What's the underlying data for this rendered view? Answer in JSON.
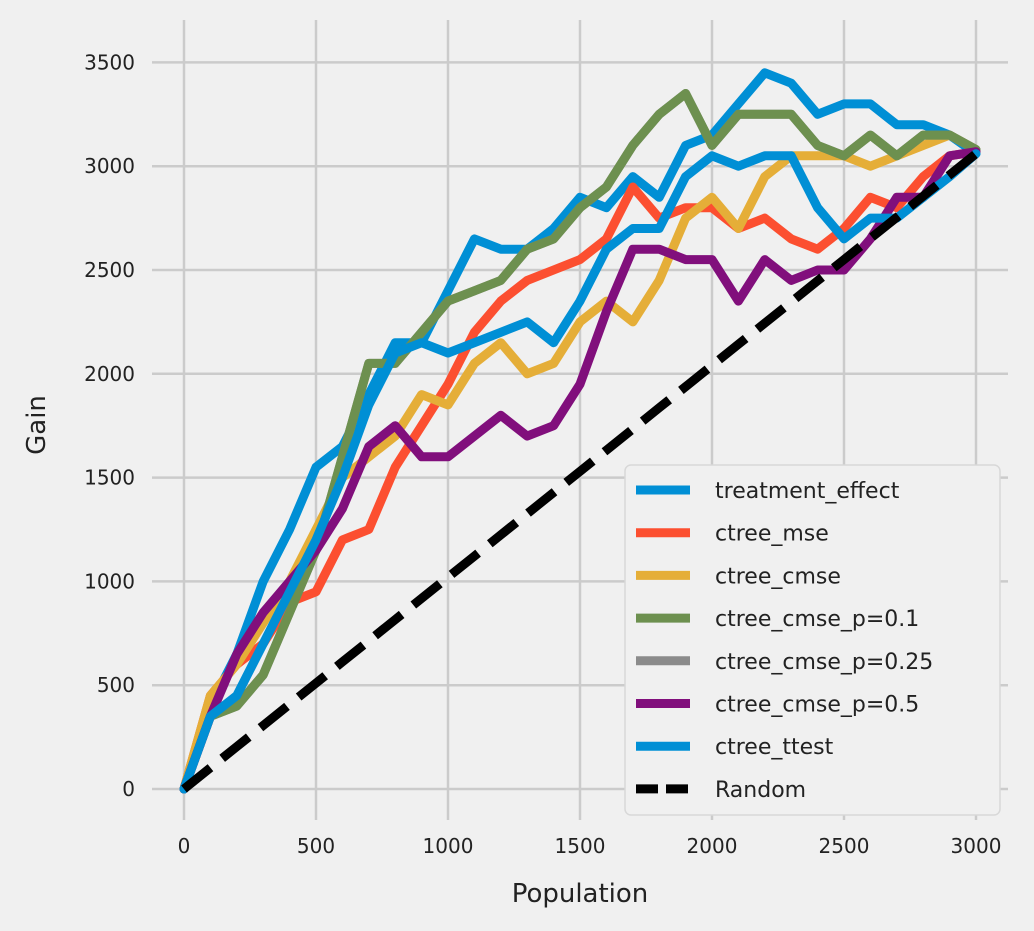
{
  "chart_data": {
    "type": "line",
    "xlabel": "Population",
    "ylabel": "Gain",
    "xlim": [
      -120,
      3120
    ],
    "ylim": [
      -150,
      3700
    ],
    "xticks": [
      0,
      500,
      1000,
      1500,
      2000,
      2500,
      3000
    ],
    "yticks": [
      0,
      500,
      1000,
      1500,
      2000,
      2500,
      3000,
      3500
    ],
    "grid": true,
    "legend_position": "lower-right",
    "x": [
      0,
      100,
      200,
      300,
      400,
      500,
      600,
      700,
      800,
      900,
      1000,
      1100,
      1200,
      1300,
      1400,
      1500,
      1600,
      1700,
      1800,
      1900,
      2000,
      2100,
      2200,
      2300,
      2400,
      2500,
      2600,
      2700,
      2800,
      2900,
      3000
    ],
    "series": [
      {
        "name": "treatment_effect",
        "color": "#008fd5",
        "values": [
          0,
          400,
          650,
          1000,
          1250,
          1550,
          1650,
          1900,
          2150,
          2150,
          2400,
          2650,
          2600,
          2600,
          2700,
          2850,
          2800,
          2950,
          2850,
          3100,
          3150,
          3300,
          3450,
          3400,
          3250,
          3300,
          3300,
          3200,
          3200,
          3150,
          3060
        ]
      },
      {
        "name": "ctree_mse",
        "color": "#fc4f30",
        "values": [
          0,
          450,
          600,
          700,
          900,
          950,
          1200,
          1250,
          1550,
          1750,
          1950,
          2200,
          2350,
          2450,
          2500,
          2550,
          2650,
          2900,
          2750,
          2800,
          2800,
          2700,
          2750,
          2650,
          2600,
          2700,
          2850,
          2800,
          2950,
          3050,
          3070
        ]
      },
      {
        "name": "ctree_cmse",
        "color": "#e5ae38",
        "values": [
          0,
          450,
          600,
          800,
          1000,
          1250,
          1500,
          1600,
          1700,
          1900,
          1850,
          2050,
          2150,
          2000,
          2050,
          2250,
          2350,
          2250,
          2450,
          2750,
          2850,
          2700,
          2950,
          3050,
          3050,
          3050,
          3000,
          3050,
          3100,
          3150,
          3080
        ]
      },
      {
        "name": "ctree_cmse_p=0.25",
        "color": "#8b8b8b",
        "values": [
          0,
          350,
          400,
          550,
          850,
          1150,
          1600,
          2050,
          2050,
          2200,
          2350,
          2400,
          2450,
          2600,
          2650,
          2800,
          2900,
          3100,
          3250,
          3350,
          3100,
          3250,
          3250,
          3250,
          3100,
          3050,
          3150,
          3050,
          3150,
          3150,
          3080
        ]
      },
      {
        "name": "ctree_cmse_p=0.1",
        "color": "#6d904f",
        "values": [
          0,
          350,
          400,
          550,
          850,
          1150,
          1600,
          2050,
          2050,
          2200,
          2350,
          2400,
          2450,
          2600,
          2650,
          2800,
          2900,
          3100,
          3250,
          3350,
          3100,
          3250,
          3250,
          3250,
          3100,
          3050,
          3150,
          3050,
          3150,
          3150,
          3080
        ]
      },
      {
        "name": "ctree_cmse_p=0.5",
        "color": "#810f7c",
        "values": [
          0,
          350,
          650,
          850,
          1000,
          1150,
          1350,
          1650,
          1750,
          1600,
          1600,
          1700,
          1800,
          1700,
          1750,
          1950,
          2300,
          2600,
          2600,
          2550,
          2550,
          2350,
          2550,
          2450,
          2500,
          2500,
          2650,
          2850,
          2850,
          3050,
          3070
        ]
      },
      {
        "name": "ctree_ttest",
        "color": "#008fd5",
        "values": [
          0,
          350,
          450,
          700,
          950,
          1200,
          1500,
          1850,
          2100,
          2150,
          2100,
          2150,
          2200,
          2250,
          2150,
          2350,
          2600,
          2700,
          2700,
          2950,
          3050,
          3000,
          3050,
          3050,
          2800,
          2650,
          2750,
          2750,
          2850,
          2950,
          3060
        ]
      },
      {
        "name": "Random",
        "color": "#000000",
        "dashed": true,
        "values": [
          0,
          102,
          204,
          306,
          408,
          510,
          612,
          714,
          816,
          918,
          1020,
          1122,
          1224,
          1326,
          1428,
          1530,
          1632,
          1734,
          1836,
          1938,
          2040,
          2142,
          2244,
          2346,
          2448,
          2550,
          2652,
          2754,
          2856,
          2958,
          3060
        ]
      }
    ],
    "legend_order": [
      "treatment_effect",
      "ctree_mse",
      "ctree_cmse",
      "ctree_cmse_p=0.1",
      "ctree_cmse_p=0.25",
      "ctree_cmse_p=0.5",
      "ctree_ttest",
      "Random"
    ]
  }
}
